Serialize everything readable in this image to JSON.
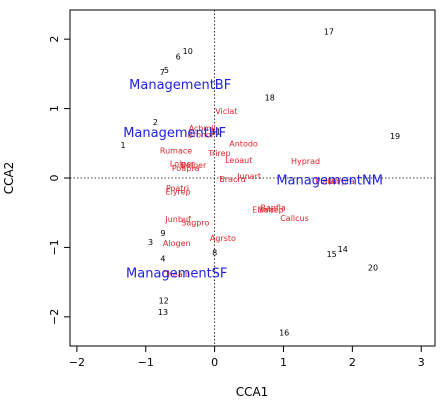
{
  "chart_data": {
    "type": "scatter",
    "title": "",
    "xlabel": "CCA1",
    "ylabel": "CCA2",
    "xlim": [
      -2.1,
      3.2
    ],
    "ylim": [
      -2.42,
      2.42
    ],
    "x_ticks": [
      -2,
      -1,
      0,
      1,
      2,
      3
    ],
    "y_ticks": [
      -2,
      -1,
      0,
      1,
      2
    ],
    "zero_lines": "dotted",
    "series": [
      {
        "name": "sites",
        "color": "#000000",
        "points": [
          {
            "label": "1",
            "x": -1.33,
            "y": 0.47
          },
          {
            "label": "2",
            "x": -0.86,
            "y": 0.8
          },
          {
            "label": "3",
            "x": -0.93,
            "y": -0.93
          },
          {
            "label": "4",
            "x": -0.75,
            "y": -1.17
          },
          {
            "label": "5",
            "x": -0.7,
            "y": 1.55
          },
          {
            "label": "6",
            "x": -0.53,
            "y": 1.74
          },
          {
            "label": "7",
            "x": -0.76,
            "y": 1.52
          },
          {
            "label": "8",
            "x": 0.0,
            "y": -1.08
          },
          {
            "label": "9",
            "x": -0.75,
            "y": -0.8
          },
          {
            "label": "10",
            "x": -0.39,
            "y": 1.82
          },
          {
            "label": "11",
            "x": 0.02,
            "y": 0.66
          },
          {
            "label": "12",
            "x": -0.74,
            "y": -1.77
          },
          {
            "label": "13",
            "x": -0.75,
            "y": -1.94
          },
          {
            "label": "14",
            "x": 1.86,
            "y": -1.03
          },
          {
            "label": "15",
            "x": 1.7,
            "y": -1.1
          },
          {
            "label": "16",
            "x": 1.01,
            "y": -2.23
          },
          {
            "label": "17",
            "x": 1.66,
            "y": 2.1
          },
          {
            "label": "18",
            "x": 0.8,
            "y": 1.15
          },
          {
            "label": "19",
            "x": 2.62,
            "y": 0.6
          },
          {
            "label": "20",
            "x": 2.3,
            "y": -1.3
          }
        ]
      },
      {
        "name": "species",
        "color": "#e3262d",
        "points": [
          {
            "label": "Viclat",
            "x": 0.17,
            "y": 0.96
          },
          {
            "label": "Achmil",
            "x": -0.18,
            "y": 0.71
          },
          {
            "label": "Brohor",
            "x": -0.2,
            "y": 0.62
          },
          {
            "label": "Antodo",
            "x": 0.42,
            "y": 0.49
          },
          {
            "label": "Rumace",
            "x": -0.56,
            "y": 0.39
          },
          {
            "label": "Trirep",
            "x": 0.07,
            "y": 0.35
          },
          {
            "label": "Leoaut",
            "x": 0.35,
            "y": 0.25
          },
          {
            "label": "Hyprad",
            "x": 1.32,
            "y": 0.24
          },
          {
            "label": "Lolper",
            "x": -0.47,
            "y": 0.2
          },
          {
            "label": "Belper",
            "x": -0.31,
            "y": 0.18
          },
          {
            "label": "Poapra",
            "x": -0.42,
            "y": 0.14
          },
          {
            "label": "Junart",
            "x": 0.5,
            "y": 0.02
          },
          {
            "label": "Bracru",
            "x": 0.26,
            "y": -0.02
          },
          {
            "label": "Plalan",
            "x": 1.64,
            "y": -0.05
          },
          {
            "label": "Airpra",
            "x": 1.86,
            "y": -0.05
          },
          {
            "label": "Poatri",
            "x": -0.54,
            "y": -0.15
          },
          {
            "label": "Elyrep",
            "x": -0.53,
            "y": -0.2
          },
          {
            "label": "Ranfla",
            "x": 0.85,
            "y": -0.43
          },
          {
            "label": "Eleval",
            "x": 0.72,
            "y": -0.46
          },
          {
            "label": "Salrep",
            "x": 0.82,
            "y": -0.46
          },
          {
            "label": "Callcus",
            "x": 1.16,
            "y": -0.58
          },
          {
            "label": "Junbuf",
            "x": -0.53,
            "y": -0.6
          },
          {
            "label": "Sagpro",
            "x": -0.28,
            "y": -0.65
          },
          {
            "label": "Agrsto",
            "x": 0.12,
            "y": -0.87
          },
          {
            "label": "Alogen",
            "x": -0.55,
            "y": -0.94
          },
          {
            "label": "Chealb",
            "x": -0.56,
            "y": -1.39
          }
        ]
      },
      {
        "name": "centroids",
        "color": "#1f1fe0",
        "points": [
          {
            "label": "ManagementBF",
            "x": -0.5,
            "y": 1.33
          },
          {
            "label": "ManagementHF",
            "x": -0.58,
            "y": 0.64
          },
          {
            "label": "ManagementNM",
            "x": 1.67,
            "y": -0.04
          },
          {
            "label": "ManagementSF",
            "x": -0.55,
            "y": -1.38
          }
        ]
      }
    ]
  }
}
